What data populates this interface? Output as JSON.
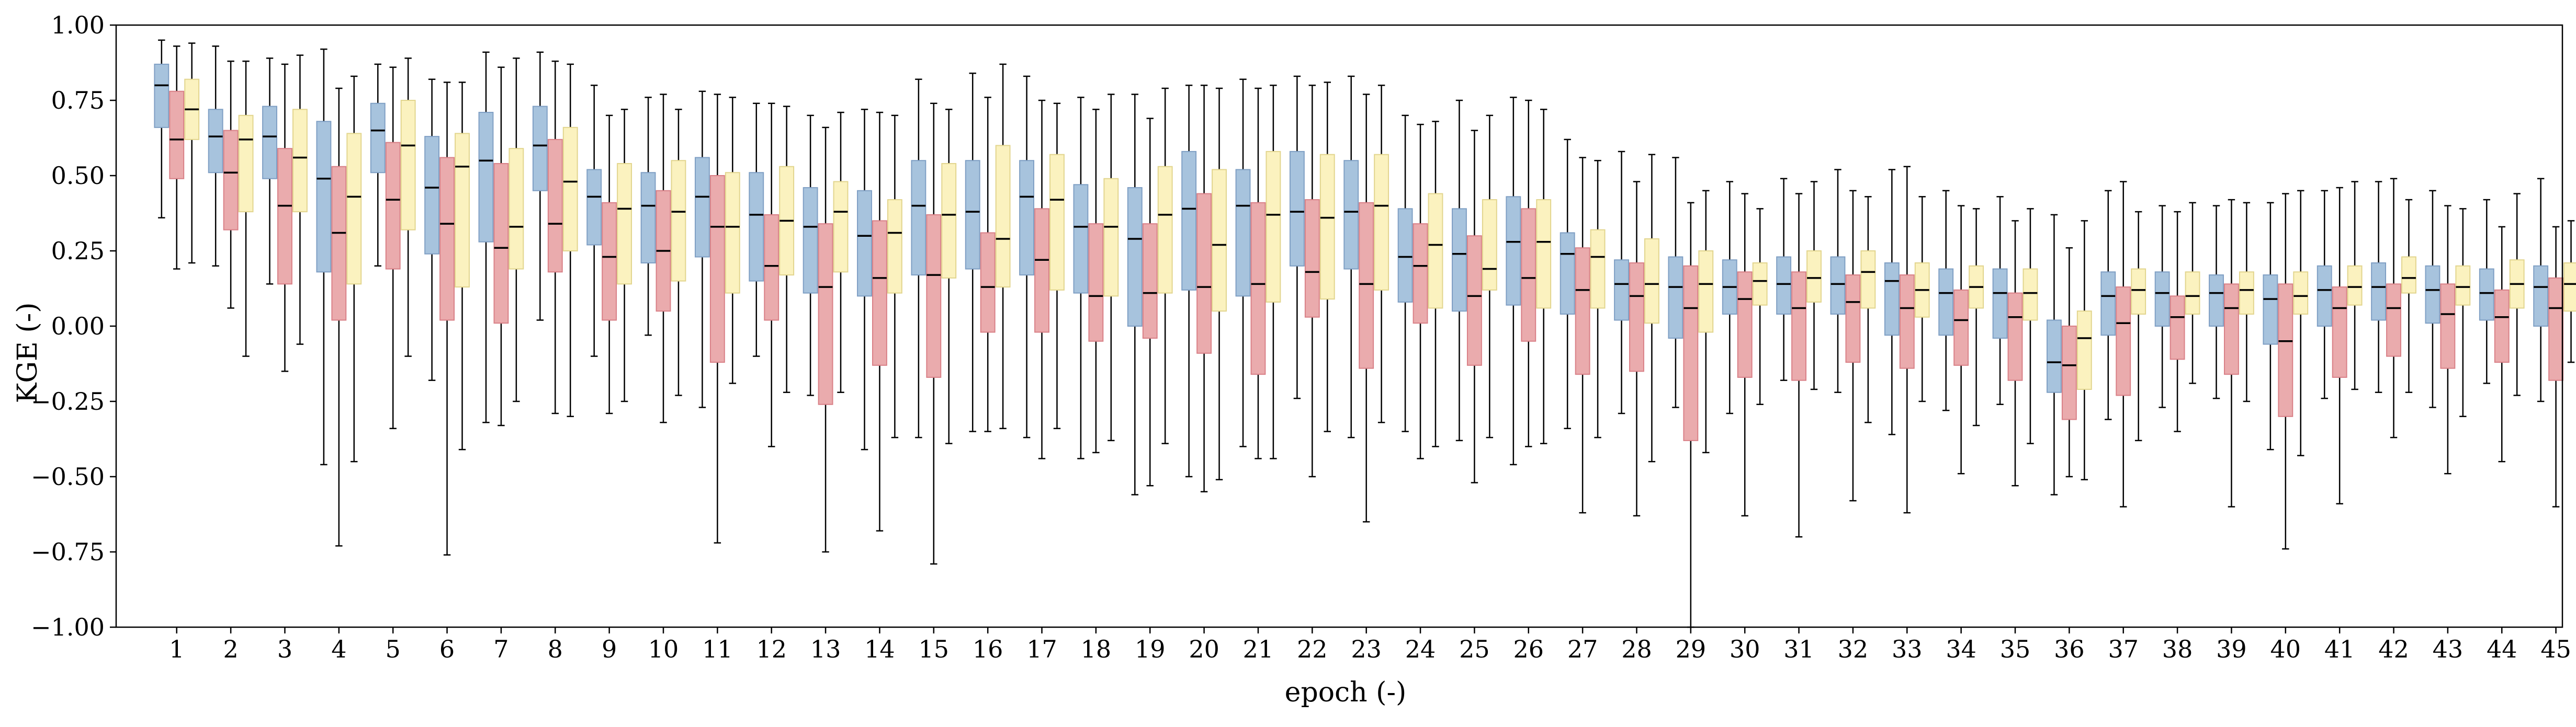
{
  "chart_data": {
    "type": "box",
    "xlabel": "epoch (-)",
    "ylabel": "KGE (-)",
    "ylim": [
      -1.0,
      1.0
    ],
    "yticks": [
      -1.0,
      -0.75,
      -0.5,
      -0.25,
      0.0,
      0.25,
      0.5,
      0.75,
      1.0
    ],
    "ytick_labels": [
      "−1.00",
      "−0.75",
      "−0.50",
      "−0.25",
      "0.00",
      "0.25",
      "0.50",
      "0.75",
      "1.00"
    ],
    "categories": [
      "1",
      "2",
      "3",
      "4",
      "5",
      "6",
      "7",
      "8",
      "9",
      "10",
      "11",
      "12",
      "13",
      "14",
      "15",
      "16",
      "17",
      "18",
      "19",
      "20",
      "21",
      "22",
      "23",
      "24",
      "25",
      "26",
      "27",
      "28",
      "29",
      "30",
      "31",
      "32",
      "33",
      "34",
      "35",
      "36",
      "37",
      "38",
      "39",
      "40",
      "41",
      "42",
      "43",
      "44",
      "45"
    ],
    "grid": false,
    "legend": "none",
    "box_stat_order": [
      "whisker_low",
      "q1",
      "median",
      "q3",
      "whisker_high"
    ],
    "series": [
      {
        "color": "#a7c3dd",
        "edge_color": "#7f9fc4",
        "boxes": [
          [
            0.36,
            0.66,
            0.8,
            0.87,
            0.95
          ],
          [
            0.2,
            0.51,
            0.63,
            0.72,
            0.93
          ],
          [
            0.14,
            0.49,
            0.63,
            0.73,
            0.89
          ],
          [
            -0.46,
            0.18,
            0.49,
            0.68,
            0.92
          ],
          [
            0.2,
            0.51,
            0.65,
            0.74,
            0.87
          ],
          [
            -0.18,
            0.24,
            0.46,
            0.63,
            0.82
          ],
          [
            -0.32,
            0.28,
            0.55,
            0.71,
            0.91
          ],
          [
            0.02,
            0.45,
            0.6,
            0.73,
            0.91
          ],
          [
            -0.1,
            0.27,
            0.43,
            0.52,
            0.8
          ],
          [
            -0.03,
            0.21,
            0.4,
            0.51,
            0.76
          ],
          [
            -0.27,
            0.23,
            0.43,
            0.56,
            0.78
          ],
          [
            -0.1,
            0.15,
            0.37,
            0.51,
            0.74
          ],
          [
            -0.23,
            0.11,
            0.33,
            0.46,
            0.7
          ],
          [
            -0.41,
            0.1,
            0.3,
            0.45,
            0.72
          ],
          [
            -0.37,
            0.17,
            0.4,
            0.55,
            0.82
          ],
          [
            -0.35,
            0.19,
            0.38,
            0.55,
            0.84
          ],
          [
            -0.37,
            0.17,
            0.43,
            0.55,
            0.83
          ],
          [
            -0.44,
            0.11,
            0.33,
            0.47,
            0.76
          ],
          [
            -0.56,
            0.0,
            0.29,
            0.46,
            0.77
          ],
          [
            -0.5,
            0.12,
            0.39,
            0.58,
            0.8
          ],
          [
            -0.4,
            0.1,
            0.4,
            0.52,
            0.82
          ],
          [
            -0.24,
            0.2,
            0.38,
            0.58,
            0.83
          ],
          [
            -0.37,
            0.19,
            0.38,
            0.55,
            0.83
          ],
          [
            -0.35,
            0.08,
            0.23,
            0.39,
            0.7
          ],
          [
            -0.38,
            0.05,
            0.24,
            0.39,
            0.75
          ],
          [
            -0.46,
            0.07,
            0.28,
            0.43,
            0.76
          ],
          [
            -0.34,
            0.04,
            0.24,
            0.31,
            0.62
          ],
          [
            -0.29,
            0.02,
            0.14,
            0.22,
            0.58
          ],
          [
            -0.27,
            -0.04,
            0.13,
            0.23,
            0.56
          ],
          [
            -0.29,
            0.04,
            0.13,
            0.22,
            0.48
          ],
          [
            -0.18,
            0.04,
            0.14,
            0.23,
            0.49
          ],
          [
            -0.22,
            0.04,
            0.14,
            0.23,
            0.52
          ],
          [
            -0.36,
            -0.03,
            0.15,
            0.21,
            0.52
          ],
          [
            -0.28,
            -0.03,
            0.11,
            0.19,
            0.45
          ],
          [
            -0.26,
            -0.04,
            0.11,
            0.19,
            0.43
          ],
          [
            -0.56,
            -0.22,
            -0.12,
            0.02,
            0.37
          ],
          [
            -0.31,
            -0.03,
            0.1,
            0.18,
            0.45
          ],
          [
            -0.27,
            0.0,
            0.11,
            0.18,
            0.4
          ],
          [
            -0.24,
            0.0,
            0.11,
            0.17,
            0.4
          ],
          [
            -0.41,
            -0.06,
            0.09,
            0.17,
            0.41
          ],
          [
            -0.24,
            0.0,
            0.12,
            0.2,
            0.45
          ],
          [
            -0.22,
            0.02,
            0.13,
            0.21,
            0.48
          ],
          [
            -0.27,
            0.01,
            0.12,
            0.2,
            0.45
          ],
          [
            -0.19,
            0.02,
            0.11,
            0.19,
            0.42
          ],
          [
            -0.25,
            0.0,
            0.13,
            0.2,
            0.49
          ]
        ]
      },
      {
        "color": "#eaabad",
        "edge_color": "#d98087",
        "boxes": [
          [
            0.19,
            0.49,
            0.62,
            0.78,
            0.93
          ],
          [
            0.06,
            0.32,
            0.51,
            0.65,
            0.88
          ],
          [
            -0.15,
            0.14,
            0.4,
            0.59,
            0.87
          ],
          [
            -0.73,
            0.02,
            0.31,
            0.53,
            0.79
          ],
          [
            -0.34,
            0.19,
            0.42,
            0.61,
            0.86
          ],
          [
            -0.76,
            0.02,
            0.34,
            0.56,
            0.81
          ],
          [
            -0.33,
            0.01,
            0.26,
            0.54,
            0.86
          ],
          [
            -0.29,
            0.18,
            0.34,
            0.62,
            0.88
          ],
          [
            -0.29,
            0.02,
            0.23,
            0.41,
            0.7
          ],
          [
            -0.32,
            0.05,
            0.25,
            0.45,
            0.77
          ],
          [
            -0.72,
            -0.12,
            0.33,
            0.5,
            0.77
          ],
          [
            -0.4,
            0.02,
            0.2,
            0.37,
            0.74
          ],
          [
            -0.75,
            -0.26,
            0.13,
            0.34,
            0.66
          ],
          [
            -0.68,
            -0.13,
            0.16,
            0.35,
            0.71
          ],
          [
            -0.79,
            -0.17,
            0.17,
            0.37,
            0.74
          ],
          [
            -0.35,
            -0.02,
            0.13,
            0.31,
            0.76
          ],
          [
            -0.44,
            -0.02,
            0.22,
            0.39,
            0.75
          ],
          [
            -0.42,
            -0.05,
            0.1,
            0.34,
            0.72
          ],
          [
            -0.53,
            -0.04,
            0.11,
            0.34,
            0.69
          ],
          [
            -0.55,
            -0.09,
            0.13,
            0.44,
            0.8
          ],
          [
            -0.44,
            -0.16,
            0.14,
            0.41,
            0.79
          ],
          [
            -0.5,
            0.03,
            0.18,
            0.42,
            0.8
          ],
          [
            -0.65,
            -0.14,
            0.14,
            0.41,
            0.77
          ],
          [
            -0.44,
            0.01,
            0.2,
            0.34,
            0.67
          ],
          [
            -0.52,
            -0.13,
            0.1,
            0.3,
            0.65
          ],
          [
            -0.4,
            -0.05,
            0.16,
            0.39,
            0.75
          ],
          [
            -0.62,
            -0.16,
            0.12,
            0.26,
            0.56
          ],
          [
            -0.63,
            -0.15,
            0.1,
            0.21,
            0.48
          ],
          [
            -1.0,
            -0.38,
            0.06,
            0.2,
            0.41
          ],
          [
            -0.63,
            -0.17,
            0.09,
            0.18,
            0.44
          ],
          [
            -0.7,
            -0.18,
            0.06,
            0.18,
            0.44
          ],
          [
            -0.58,
            -0.12,
            0.08,
            0.17,
            0.45
          ],
          [
            -0.62,
            -0.14,
            0.06,
            0.17,
            0.53
          ],
          [
            -0.49,
            -0.13,
            0.02,
            0.12,
            0.4
          ],
          [
            -0.53,
            -0.18,
            0.03,
            0.11,
            0.35
          ],
          [
            -0.5,
            -0.31,
            -0.13,
            0.0,
            0.26
          ],
          [
            -0.6,
            -0.23,
            0.01,
            0.13,
            0.48
          ],
          [
            -0.35,
            -0.11,
            0.03,
            0.1,
            0.38
          ],
          [
            -0.6,
            -0.16,
            0.06,
            0.14,
            0.42
          ],
          [
            -0.74,
            -0.3,
            -0.05,
            0.14,
            0.44
          ],
          [
            -0.59,
            -0.17,
            0.06,
            0.13,
            0.46
          ],
          [
            -0.37,
            -0.1,
            0.06,
            0.14,
            0.49
          ],
          [
            -0.49,
            -0.14,
            0.04,
            0.14,
            0.4
          ],
          [
            -0.45,
            -0.12,
            0.03,
            0.12,
            0.33
          ],
          [
            -0.6,
            -0.18,
            0.06,
            0.16,
            0.33
          ]
        ]
      },
      {
        "color": "#fbf2bf",
        "edge_color": "#e2d58e",
        "boxes": [
          [
            0.21,
            0.62,
            0.72,
            0.82,
            0.94
          ],
          [
            -0.1,
            0.38,
            0.62,
            0.7,
            0.88
          ],
          [
            -0.06,
            0.38,
            0.56,
            0.72,
            0.9
          ],
          [
            -0.45,
            0.14,
            0.43,
            0.64,
            0.83
          ],
          [
            -0.1,
            0.32,
            0.6,
            0.75,
            0.89
          ],
          [
            -0.41,
            0.13,
            0.53,
            0.64,
            0.81
          ],
          [
            -0.25,
            0.19,
            0.33,
            0.59,
            0.89
          ],
          [
            -0.3,
            0.25,
            0.48,
            0.66,
            0.87
          ],
          [
            -0.25,
            0.14,
            0.39,
            0.54,
            0.72
          ],
          [
            -0.23,
            0.15,
            0.38,
            0.55,
            0.72
          ],
          [
            -0.19,
            0.11,
            0.33,
            0.51,
            0.76
          ],
          [
            -0.22,
            0.17,
            0.35,
            0.53,
            0.73
          ],
          [
            -0.22,
            0.18,
            0.38,
            0.48,
            0.71
          ],
          [
            -0.37,
            0.11,
            0.31,
            0.42,
            0.7
          ],
          [
            -0.39,
            0.16,
            0.37,
            0.54,
            0.72
          ],
          [
            -0.34,
            0.13,
            0.29,
            0.6,
            0.87
          ],
          [
            -0.34,
            0.12,
            0.42,
            0.57,
            0.74
          ],
          [
            -0.38,
            0.1,
            0.33,
            0.49,
            0.77
          ],
          [
            -0.39,
            0.11,
            0.37,
            0.53,
            0.79
          ],
          [
            -0.51,
            0.05,
            0.27,
            0.52,
            0.79
          ],
          [
            -0.44,
            0.08,
            0.37,
            0.58,
            0.8
          ],
          [
            -0.35,
            0.09,
            0.36,
            0.57,
            0.81
          ],
          [
            -0.32,
            0.12,
            0.4,
            0.57,
            0.8
          ],
          [
            -0.4,
            0.06,
            0.27,
            0.44,
            0.68
          ],
          [
            -0.37,
            0.12,
            0.19,
            0.42,
            0.7
          ],
          [
            -0.39,
            0.06,
            0.28,
            0.42,
            0.72
          ],
          [
            -0.37,
            0.06,
            0.23,
            0.32,
            0.55
          ],
          [
            -0.45,
            0.01,
            0.14,
            0.29,
            0.57
          ],
          [
            -0.42,
            -0.02,
            0.14,
            0.25,
            0.45
          ],
          [
            -0.26,
            0.07,
            0.15,
            0.21,
            0.39
          ],
          [
            -0.21,
            0.08,
            0.16,
            0.25,
            0.48
          ],
          [
            -0.32,
            0.06,
            0.18,
            0.25,
            0.43
          ],
          [
            -0.25,
            0.03,
            0.12,
            0.21,
            0.43
          ],
          [
            -0.33,
            0.06,
            0.13,
            0.2,
            0.39
          ],
          [
            -0.39,
            0.02,
            0.11,
            0.19,
            0.39
          ],
          [
            -0.51,
            -0.21,
            -0.04,
            0.05,
            0.35
          ],
          [
            -0.38,
            0.04,
            0.12,
            0.19,
            0.38
          ],
          [
            -0.19,
            0.04,
            0.1,
            0.18,
            0.41
          ],
          [
            -0.25,
            0.04,
            0.12,
            0.18,
            0.41
          ],
          [
            -0.43,
            0.04,
            0.1,
            0.18,
            0.45
          ],
          [
            -0.21,
            0.07,
            0.13,
            0.2,
            0.48
          ],
          [
            -0.22,
            0.11,
            0.16,
            0.23,
            0.42
          ],
          [
            -0.3,
            0.07,
            0.13,
            0.2,
            0.39
          ],
          [
            -0.23,
            0.06,
            0.14,
            0.22,
            0.44
          ],
          [
            -0.12,
            0.05,
            0.14,
            0.21,
            0.35
          ]
        ]
      }
    ]
  }
}
